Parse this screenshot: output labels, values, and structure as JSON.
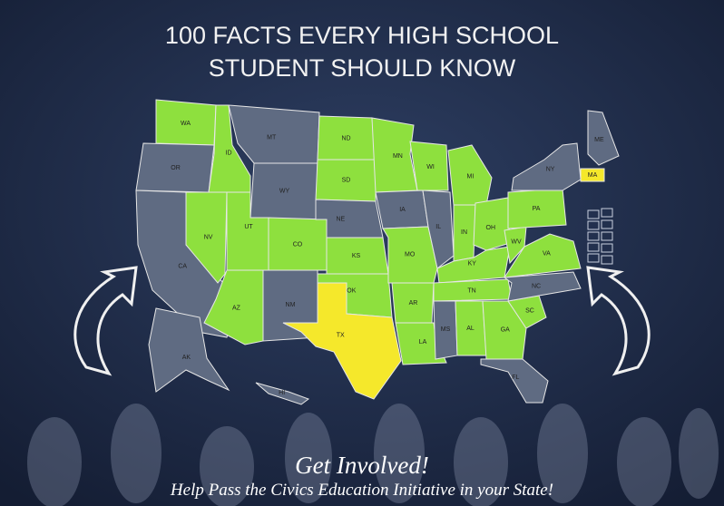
{
  "header": {
    "title_lines": [
      "100 FACTS EVERY HIGH SCHOOL",
      "STUDENT SHOULD KNOW"
    ]
  },
  "map": {
    "states": [
      {
        "label": "WA",
        "color": "#8ee03e"
      },
      {
        "label": "OR",
        "color": "#5f6b82"
      },
      {
        "label": "CA",
        "color": "#5f6b82"
      },
      {
        "label": "NV",
        "color": "#8ee03e"
      },
      {
        "label": "ID",
        "color": "#8ee03e"
      },
      {
        "label": "MT",
        "color": "#5f6b82"
      },
      {
        "label": "WY",
        "color": "#5f6b82"
      },
      {
        "label": "UT",
        "color": "#8ee03e"
      },
      {
        "label": "CO",
        "color": "#8ee03e"
      },
      {
        "label": "AZ",
        "color": "#8ee03e"
      },
      {
        "label": "NM",
        "color": "#5f6b82"
      },
      {
        "label": "ND",
        "color": "#8ee03e"
      },
      {
        "label": "SD",
        "color": "#8ee03e"
      },
      {
        "label": "NE",
        "color": "#5f6b82"
      },
      {
        "label": "KS",
        "color": "#8ee03e"
      },
      {
        "label": "OK",
        "color": "#8ee03e"
      },
      {
        "label": "TX",
        "color": "#f5e82b"
      },
      {
        "label": "MN",
        "color": "#8ee03e"
      },
      {
        "label": "IA",
        "color": "#5f6b82"
      },
      {
        "label": "MO",
        "color": "#8ee03e"
      },
      {
        "label": "AR",
        "color": "#8ee03e"
      },
      {
        "label": "LA",
        "color": "#8ee03e"
      },
      {
        "label": "WI",
        "color": "#8ee03e"
      },
      {
        "label": "IL",
        "color": "#5f6b82"
      },
      {
        "label": "MI",
        "color": "#8ee03e"
      },
      {
        "label": "IN",
        "color": "#8ee03e"
      },
      {
        "label": "OH",
        "color": "#8ee03e"
      },
      {
        "label": "KY",
        "color": "#8ee03e"
      },
      {
        "label": "TN",
        "color": "#8ee03e"
      },
      {
        "label": "MS",
        "color": "#5f6b82"
      },
      {
        "label": "AL",
        "color": "#8ee03e"
      },
      {
        "label": "GA",
        "color": "#8ee03e"
      },
      {
        "label": "FL",
        "color": "#5f6b82"
      },
      {
        "label": "SC",
        "color": "#8ee03e"
      },
      {
        "label": "NC",
        "color": "#5f6b82"
      },
      {
        "label": "VA",
        "color": "#8ee03e"
      },
      {
        "label": "WV",
        "color": "#8ee03e"
      },
      {
        "label": "PA",
        "color": "#8ee03e"
      },
      {
        "label": "NY",
        "color": "#5f6b82"
      },
      {
        "label": "ME",
        "color": "#5f6b82"
      },
      {
        "label": "MA",
        "color": "#f5e82b"
      },
      {
        "label": "AK",
        "color": "#5f6b82"
      },
      {
        "label": "HI",
        "color": "#5f6b82"
      }
    ]
  },
  "footer": {
    "heading": "Get Involved!",
    "subheading": "Help Pass the Civics Education Initiative in your State!"
  }
}
